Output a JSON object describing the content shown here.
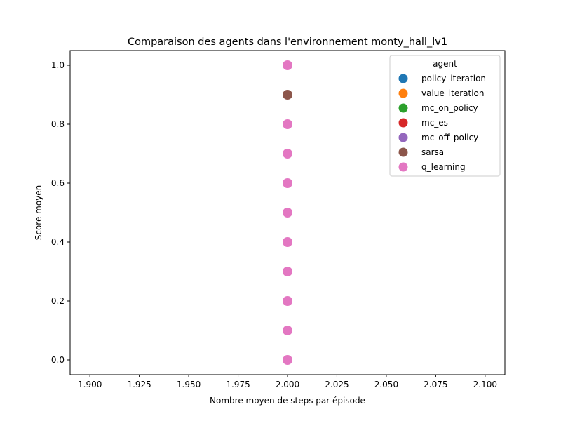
{
  "chart_data": {
    "type": "scatter",
    "title": "Comparaison des agents dans l'environnement monty_hall_lv1",
    "xlabel": "Nombre moyen de steps par épisode",
    "ylabel": "Score moyen",
    "xlim": [
      1.89,
      2.11
    ],
    "ylim": [
      -0.05,
      1.05
    ],
    "xticks": [
      "1.900",
      "1.925",
      "1.950",
      "1.975",
      "2.000",
      "2.025",
      "2.050",
      "2.075",
      "2.100"
    ],
    "yticks": [
      "0.0",
      "0.2",
      "0.4",
      "0.6",
      "0.8",
      "1.0"
    ],
    "grid": false,
    "legend": {
      "title": "agent",
      "placement": "top-right"
    },
    "series": [
      {
        "name": "policy_iteration",
        "color": "#1f77b4",
        "points": []
      },
      {
        "name": "value_iteration",
        "color": "#ff7f0e",
        "points": []
      },
      {
        "name": "mc_on_policy",
        "color": "#2ca02c",
        "points": []
      },
      {
        "name": "mc_es",
        "color": "#d62728",
        "points": []
      },
      {
        "name": "mc_off_policy",
        "color": "#9467bd",
        "points": []
      },
      {
        "name": "sarsa",
        "color": "#8c564b",
        "points": [
          [
            2.0,
            0.9
          ]
        ]
      },
      {
        "name": "q_learning",
        "color": "#e377c2",
        "points": [
          [
            2.0,
            0.0
          ],
          [
            2.0,
            0.1
          ],
          [
            2.0,
            0.2
          ],
          [
            2.0,
            0.3
          ],
          [
            2.0,
            0.4
          ],
          [
            2.0,
            0.5
          ],
          [
            2.0,
            0.6
          ],
          [
            2.0,
            0.7
          ],
          [
            2.0,
            0.8
          ],
          [
            2.0,
            1.0
          ]
        ]
      }
    ]
  }
}
